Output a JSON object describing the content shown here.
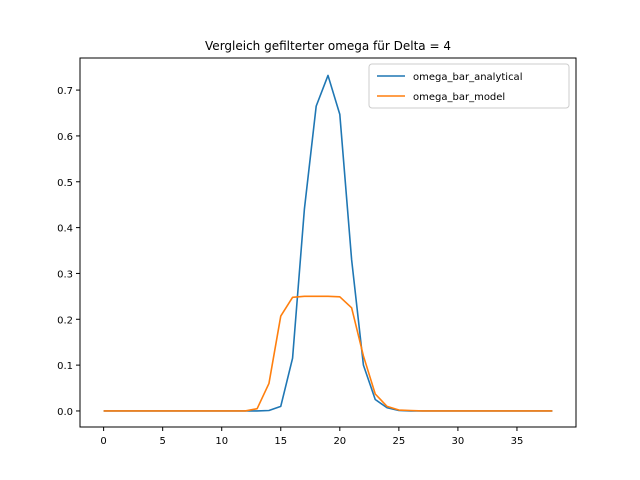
{
  "chart_data": {
    "type": "line",
    "title": "Vergleich gefilterter omega für Delta = 4",
    "xlabel": "",
    "ylabel": "",
    "xlim": [
      -2,
      40
    ],
    "ylim": [
      -0.035,
      0.77
    ],
    "xticks": [
      0,
      5,
      10,
      15,
      20,
      25,
      30,
      35
    ],
    "yticks": [
      0.0,
      0.1,
      0.2,
      0.3,
      0.4,
      0.5,
      0.6,
      0.7
    ],
    "grid": false,
    "legend_position": "top-right",
    "x": [
      0,
      1,
      2,
      3,
      4,
      5,
      6,
      7,
      8,
      9,
      10,
      11,
      12,
      13,
      14,
      15,
      16,
      17,
      18,
      19,
      20,
      21,
      22,
      23,
      24,
      25,
      26,
      27,
      28,
      29,
      30,
      31,
      32,
      33,
      34,
      35,
      36,
      37,
      38
    ],
    "series": [
      {
        "name": "omega_bar_analytical",
        "color": "#1f77b4",
        "values": [
          0,
          0,
          0,
          0,
          0,
          0,
          0,
          0,
          0,
          0,
          0,
          0,
          0,
          0,
          0.001,
          0.01,
          0.115,
          0.44,
          0.665,
          0.732,
          0.647,
          0.33,
          0.1,
          0.025,
          0.007,
          0.001,
          0,
          0,
          0,
          0,
          0,
          0,
          0,
          0,
          0,
          0,
          0,
          0,
          0
        ]
      },
      {
        "name": "omega_bar_model",
        "color": "#ff7f0e",
        "values": [
          0,
          0,
          0,
          0,
          0,
          0,
          0,
          0,
          0,
          0,
          0,
          0,
          0,
          0.005,
          0.06,
          0.207,
          0.248,
          0.25,
          0.25,
          0.25,
          0.249,
          0.225,
          0.12,
          0.037,
          0.01,
          0.002,
          0.001,
          0,
          0,
          0,
          0,
          0,
          0,
          0,
          0,
          0,
          0,
          0,
          0
        ]
      }
    ]
  }
}
